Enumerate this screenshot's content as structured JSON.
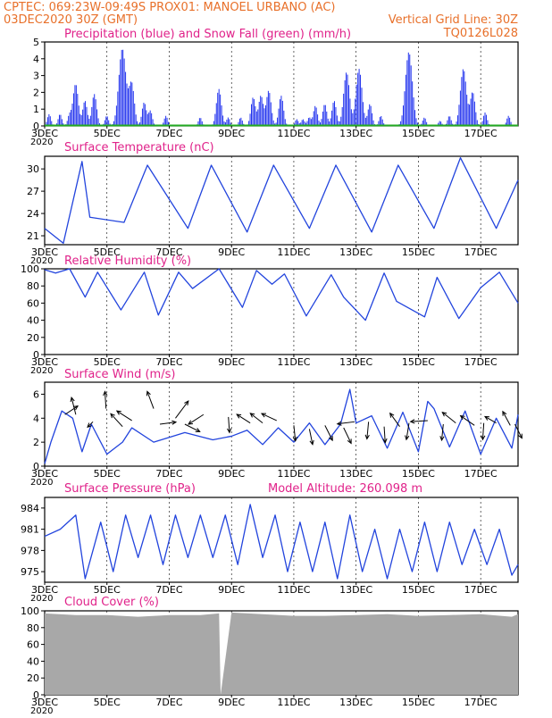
{
  "header": {
    "line1": "CPTEC:   069:23W-09:49S   PROX01: MANOEL URBANO (AC)",
    "line2_left": "03DEC2020 30Z (GMT)",
    "line2_right": "Vertical Grid Line: 30Z",
    "line3_right": "TQ0126L028",
    "altitude_label": "Model Altitude: 260.098 m"
  },
  "colors": {
    "header": "#e8702a",
    "title": "#e0228a",
    "precip": "#2233ee",
    "snow": "#22aa22",
    "line": "#2244dd",
    "arrow": "#000000",
    "cloud": "#a8a8a8"
  },
  "x_axis": {
    "tick_days": [
      3,
      5,
      7,
      9,
      11,
      13,
      15,
      17
    ],
    "tick_labels": [
      "3DEC",
      "5DEC",
      "7DEC",
      "9DEC",
      "11DEC",
      "13DEC",
      "15DEC",
      "17DEC"
    ],
    "corner_label": "2020",
    "range_days": [
      3,
      18.2
    ]
  },
  "chart_data": [
    {
      "type": "bar",
      "title": "Precipitation (blue) and Snow Fall (green) (mm/h)",
      "ylim": [
        0,
        5
      ],
      "yticks": [
        0,
        1,
        2,
        3,
        4,
        5
      ],
      "series": [
        {
          "name": "Precipitation",
          "peaks": [
            [
              3.15,
              0.7
            ],
            [
              3.5,
              0.7
            ],
            [
              3.8,
              0.6
            ],
            [
              4.0,
              2.5
            ],
            [
              4.3,
              1.5
            ],
            [
              4.6,
              1.9
            ],
            [
              5.0,
              0.6
            ],
            [
              5.5,
              4.6
            ],
            [
              5.8,
              2.5
            ],
            [
              6.2,
              1.4
            ],
            [
              6.4,
              0.9
            ],
            [
              6.9,
              0.6
            ],
            [
              8.0,
              0.5
            ],
            [
              8.6,
              2.2
            ],
            [
              8.9,
              0.5
            ],
            [
              9.3,
              0.5
            ],
            [
              9.7,
              1.7
            ],
            [
              9.95,
              1.8
            ],
            [
              10.2,
              2.1
            ],
            [
              10.6,
              1.8
            ],
            [
              11.1,
              0.4
            ],
            [
              11.3,
              0.4
            ],
            [
              11.5,
              0.5
            ],
            [
              11.7,
              1.2
            ],
            [
              12.0,
              1.3
            ],
            [
              12.3,
              1.5
            ],
            [
              12.7,
              3.2
            ],
            [
              13.1,
              3.4
            ],
            [
              13.45,
              1.3
            ],
            [
              13.8,
              0.6
            ],
            [
              14.7,
              4.4
            ],
            [
              15.2,
              0.5
            ],
            [
              15.7,
              0.3
            ],
            [
              16.0,
              0.6
            ],
            [
              16.45,
              3.4
            ],
            [
              16.75,
              2.0
            ],
            [
              17.15,
              0.8
            ],
            [
              17.9,
              0.6
            ]
          ]
        },
        {
          "name": "Snow Fall",
          "values": [
            0
          ]
        }
      ]
    },
    {
      "type": "line",
      "title": "Surface Temperature (nC)",
      "ylim": [
        19.8,
        31.7
      ],
      "yticks": [
        21,
        24,
        27,
        30
      ],
      "x": [
        3,
        3.6,
        4.2,
        4.45,
        5.55,
        6.3,
        7.6,
        8.35,
        9.5,
        10.35,
        11.5,
        12.35,
        13.5,
        14.35,
        15.5,
        16.35,
        17.5,
        18.2
      ],
      "values": [
        22.0,
        20.0,
        31.0,
        23.5,
        22.8,
        30.5,
        22.0,
        30.5,
        21.5,
        30.5,
        22.0,
        30.5,
        21.5,
        30.5,
        22.0,
        31.5,
        22.0,
        28.5
      ]
    },
    {
      "type": "line",
      "title": "Relative Humidity (%)",
      "ylim": [
        0,
        100
      ],
      "yticks": [
        0,
        20,
        40,
        60,
        80,
        100
      ],
      "x": [
        3,
        3.35,
        3.8,
        4.3,
        4.7,
        5.45,
        6.2,
        6.65,
        7.3,
        7.75,
        8.6,
        9.35,
        9.8,
        10.3,
        10.7,
        11.4,
        12.2,
        12.6,
        13.3,
        13.9,
        14.3,
        15.2,
        15.6,
        16.3,
        17.0,
        17.6,
        18.2
      ],
      "values": [
        99,
        95,
        100,
        67,
        96,
        52,
        96,
        46,
        96,
        77,
        100,
        55,
        98,
        82,
        94,
        45,
        93,
        67,
        40,
        95,
        62,
        44,
        90,
        42,
        78,
        96,
        60
      ]
    },
    {
      "type": "line",
      "title": "Surface Wind (m/s)",
      "ylim": [
        0,
        7
      ],
      "yticks": [
        0,
        2,
        4,
        6
      ],
      "x": [
        3,
        3.2,
        3.55,
        3.9,
        4.2,
        4.5,
        5.0,
        5.5,
        5.8,
        6.5,
        7.5,
        8.4,
        9.0,
        9.5,
        10.0,
        10.5,
        11.0,
        11.5,
        12.0,
        12.5,
        12.8,
        13.0,
        13.5,
        14.0,
        14.5,
        15.0,
        15.3,
        15.5,
        16.0,
        16.5,
        17.0,
        17.5,
        18.0,
        18.2
      ],
      "values": [
        0.2,
        2.0,
        4.6,
        4.0,
        1.2,
        3.5,
        1.0,
        2.0,
        3.2,
        2.0,
        2.8,
        2.2,
        2.5,
        3.0,
        1.8,
        3.2,
        2.0,
        3.6,
        1.8,
        3.5,
        6.4,
        3.6,
        4.2,
        1.5,
        4.5,
        1.2,
        5.4,
        4.8,
        1.6,
        4.6,
        1.0,
        4.0,
        1.5,
        4.3
      ],
      "arrows": [
        [
          3.65,
          4.3,
          2.4,
          -1.6
        ],
        [
          4.0,
          4.3,
          -0.8,
          -3.2
        ],
        [
          4.55,
          3.7,
          -1.0,
          1.0
        ],
        [
          4.97,
          4.8,
          -0.2,
          -3.2
        ],
        [
          5.5,
          3.3,
          -2.2,
          -2.4
        ],
        [
          5.8,
          3.8,
          -2.8,
          -1.8
        ],
        [
          6.5,
          4.8,
          -1.2,
          -3.2
        ],
        [
          6.7,
          3.5,
          3.0,
          -0.4
        ],
        [
          7.2,
          4.0,
          2.4,
          -3.2
        ],
        [
          7.5,
          3.5,
          2.8,
          1.4
        ],
        [
          8.1,
          4.3,
          -2.8,
          1.8
        ],
        [
          8.9,
          4.1,
          0.2,
          2.9
        ],
        [
          9.6,
          3.6,
          -2.5,
          -1.6
        ],
        [
          10.0,
          3.6,
          -2.3,
          -1.8
        ],
        [
          10.45,
          3.8,
          -2.8,
          -1.3
        ],
        [
          11.0,
          3.4,
          0.3,
          2.9
        ],
        [
          11.5,
          3.1,
          0.6,
          2.9
        ],
        [
          12.0,
          3.4,
          1.4,
          2.8
        ],
        [
          12.6,
          3.2,
          1.4,
          2.9
        ],
        [
          12.95,
          3.7,
          -3.2,
          0.4
        ],
        [
          13.4,
          3.7,
          -0.3,
          3.2
        ],
        [
          13.9,
          3.3,
          0.2,
          3.0
        ],
        [
          14.4,
          3.3,
          -1.8,
          -2.5
        ],
        [
          14.7,
          3.6,
          -0.5,
          3.1
        ],
        [
          15.3,
          3.8,
          -3.2,
          0.2
        ],
        [
          15.8,
          3.5,
          -0.3,
          3.0
        ],
        [
          16.2,
          3.6,
          -2.5,
          -2.0
        ],
        [
          16.8,
          3.4,
          -2.6,
          -1.8
        ],
        [
          17.1,
          3.6,
          -0.2,
          3.1
        ],
        [
          17.5,
          3.6,
          -2.1,
          -1.2
        ],
        [
          17.95,
          3.4,
          -1.4,
          -2.6
        ],
        [
          18.1,
          3.5,
          1.3,
          2.6
        ]
      ]
    },
    {
      "type": "line",
      "title": "Surface Pressure (hPa)",
      "ylim": [
        973.5,
        985.5
      ],
      "yticks": [
        975,
        978,
        981,
        984
      ],
      "x": [
        3,
        3.5,
        4.0,
        4.3,
        4.8,
        5.2,
        5.6,
        6.0,
        6.4,
        6.8,
        7.2,
        7.6,
        8.0,
        8.4,
        8.8,
        9.2,
        9.6,
        10.0,
        10.4,
        10.8,
        11.2,
        11.6,
        12.0,
        12.4,
        12.8,
        13.2,
        13.6,
        14.0,
        14.4,
        14.8,
        15.2,
        15.6,
        16.0,
        16.4,
        16.8,
        17.2,
        17.6,
        18.0,
        18.2
      ],
      "values": [
        980,
        981,
        983,
        974,
        982,
        975,
        983,
        977,
        983,
        976,
        983,
        977,
        983,
        977,
        983,
        976,
        984.5,
        977,
        983,
        975,
        982,
        975,
        982,
        974,
        983,
        975,
        981,
        974,
        981,
        975,
        982,
        975,
        982,
        976,
        981,
        976,
        981,
        974.5,
        976
      ]
    },
    {
      "type": "area",
      "title": "Cloud Cover (%)",
      "ylim": [
        0,
        100
      ],
      "yticks": [
        0,
        20,
        40,
        60,
        80,
        100
      ],
      "x": [
        3,
        4,
        5,
        6,
        7,
        8,
        8.6,
        8.65,
        9,
        10,
        11,
        12,
        13,
        14,
        15,
        16,
        17,
        18,
        18.2
      ],
      "values": [
        97,
        95,
        95,
        93,
        95,
        95,
        97,
        0,
        98,
        96,
        94,
        94,
        95,
        96,
        94,
        95,
        96,
        93,
        96
      ]
    }
  ]
}
